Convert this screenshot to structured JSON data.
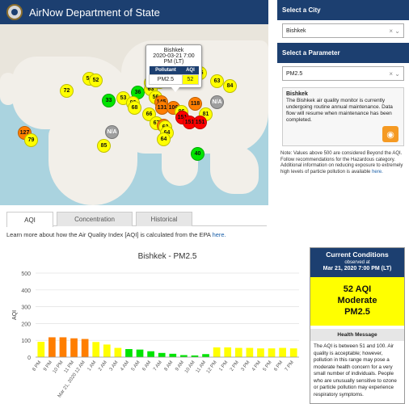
{
  "header": {
    "title": "AirNow Department of State"
  },
  "map": {
    "popup": {
      "city": "Bishkek",
      "datetime": "2020-03-21 7:00 PM (LT)",
      "col_pollutant": "Pollutant",
      "col_aqi": "AQI",
      "pollutant": "PM2.5",
      "aqi": "52"
    },
    "markers": [
      {
        "label": "51",
        "color": "#ffff00"
      },
      {
        "label": "52",
        "color": "#ffff00"
      },
      {
        "label": "72",
        "color": "#ffff00"
      },
      {
        "label": "75",
        "color": "#ffff00"
      },
      {
        "label": "36",
        "color": "#00e400"
      },
      {
        "label": "71",
        "color": "#ffff00"
      },
      {
        "label": "63",
        "color": "#ffff00"
      },
      {
        "label": "52",
        "color": "#ffff00"
      },
      {
        "label": "84",
        "color": "#ffff00"
      },
      {
        "label": "63",
        "color": "#ffff00"
      },
      {
        "label": "33",
        "color": "#00e400"
      },
      {
        "label": "53",
        "color": "#ffff00"
      },
      {
        "label": "93",
        "color": "#ffff00"
      },
      {
        "label": "68",
        "color": "#ffff00"
      },
      {
        "label": "56",
        "color": "#ffff00"
      },
      {
        "label": "145",
        "color": "#ff7e00"
      },
      {
        "label": "131",
        "color": "#ff7e00"
      },
      {
        "label": "66",
        "color": "#ffff00"
      },
      {
        "label": "106",
        "color": "#ff7e00"
      },
      {
        "label": "118",
        "color": "#ff7e00"
      },
      {
        "label": "N/A",
        "color": "#9e9e9e"
      },
      {
        "label": "96",
        "color": "#ffff00"
      },
      {
        "label": "151",
        "color": "#ff0000"
      },
      {
        "label": "151",
        "color": "#ff0000"
      },
      {
        "label": "81",
        "color": "#ffff00"
      },
      {
        "label": "67",
        "color": "#ffff00"
      },
      {
        "label": "103",
        "color": "#ff7e00"
      },
      {
        "label": "151",
        "color": "#ff0000"
      },
      {
        "label": "127",
        "color": "#ff7e00"
      },
      {
        "label": "79",
        "color": "#ffff00"
      },
      {
        "label": "N/A",
        "color": "#9e9e9e"
      },
      {
        "label": "62",
        "color": "#ffff00"
      },
      {
        "label": "64",
        "color": "#ffff00"
      },
      {
        "label": "64",
        "color": "#ffff00"
      },
      {
        "label": "85",
        "color": "#ffff00"
      },
      {
        "label": "40",
        "color": "#00e400"
      }
    ]
  },
  "sidebar": {
    "city_heading": "Select a City",
    "city_value": "Bishkek",
    "param_heading": "Select a Parameter",
    "param_value": "PM2.5",
    "info_title": "Bishkek",
    "info_text": "The Bishkek air quality monitor is currently undergoing routine annual maintenance. Data flow will resume when maintenance has been completed.",
    "note_text": "Note: Values above 500 are considered Beyond the AQI. Follow recommendations for the Hazardous category. Additional information on reducing exposure to extremely high levels of particle pollution is available",
    "note_link": "here.",
    "clear_icon": "×",
    "dropdown_icon": "⌄",
    "rss_icon": "rss-feed-icon"
  },
  "tabs": {
    "aqi": "AQI",
    "concentration": "Concentration",
    "historical": "Historical"
  },
  "learn": {
    "text": "Learn more about how the Air Quality Index [AQI] is calculated from the EPA",
    "link": "here."
  },
  "chart_data": {
    "type": "bar",
    "title": "Bishkek - PM2.5",
    "xlabel": "",
    "ylabel": "AQI",
    "ylim": [
      0,
      500
    ],
    "yticks": [
      0,
      100,
      200,
      300,
      400,
      500
    ],
    "grid": true,
    "categories": [
      "8 PM",
      "9 PM",
      "10 PM",
      "11 PM",
      "Mar 21, 2020 12 AM",
      "1 AM",
      "2 AM",
      "3 AM",
      "4 AM",
      "5 AM",
      "6 AM",
      "7 AM",
      "8 AM",
      "9 AM",
      "10 AM",
      "11 AM",
      "12 PM",
      "1 PM",
      "2 PM",
      "3 PM",
      "4 PM",
      "5 PM",
      "6 PM",
      "7 PM"
    ],
    "values": [
      91,
      118,
      118,
      112,
      108,
      90,
      75,
      55,
      48,
      45,
      35,
      25,
      20,
      12,
      10,
      18,
      58,
      58,
      55,
      55,
      52,
      52,
      55,
      52
    ],
    "colors": [
      "#ffff00",
      "#ff7e00",
      "#ff7e00",
      "#ff7e00",
      "#ff7e00",
      "#ffff00",
      "#ffff00",
      "#ffff00",
      "#00e400",
      "#00e400",
      "#00e400",
      "#00e400",
      "#00e400",
      "#00e400",
      "#00e400",
      "#00e400",
      "#ffff00",
      "#ffff00",
      "#ffff00",
      "#ffff00",
      "#ffff00",
      "#ffff00",
      "#ffff00",
      "#ffff00"
    ]
  },
  "conditions": {
    "title": "Current Conditions",
    "observed": "observed at",
    "datetime": "Mar 21, 2020 7:00 PM (LT)",
    "aqi_line": "52 AQI",
    "category": "Moderate",
    "pollutant": "PM2.5",
    "health_heading": "Health Message",
    "health_text": "The AQI is between 51 and 100. Air quality is acceptable; however, pollution in this range may pose a moderate health concern for a very small number of individuals. People who are unusually sensitive to ozone or particle pollution may experience respiratory symptoms."
  }
}
